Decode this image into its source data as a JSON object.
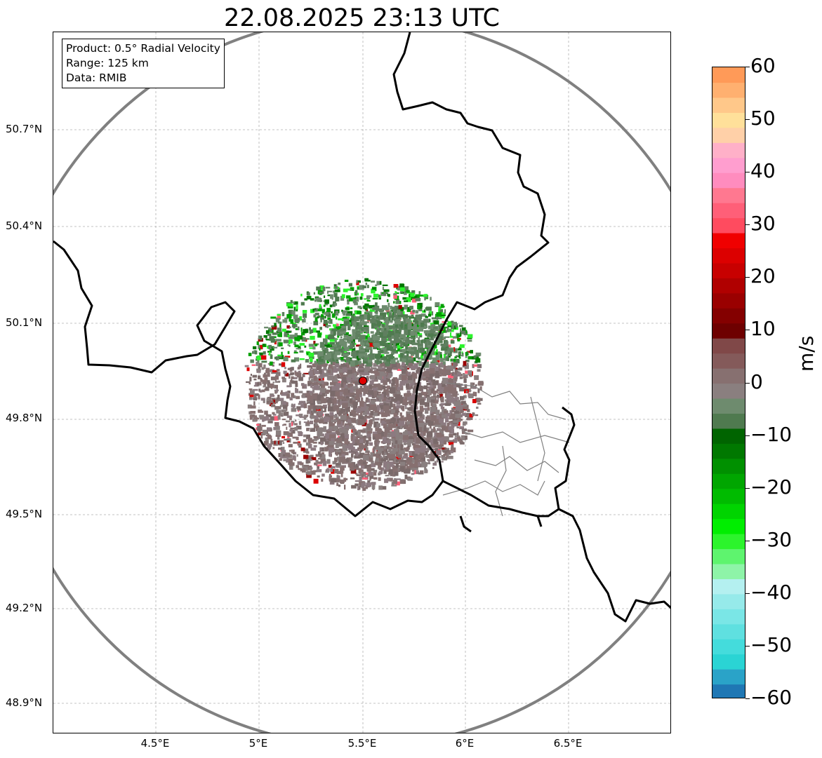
{
  "title": "22.08.2025 23:13 UTC",
  "info": {
    "product": "Product: 0.5° Radial Velocity",
    "range": "Range: 125 km",
    "data": "Data: RMIB"
  },
  "latitude_labels": [
    "50.7°N",
    "50.4°N",
    "50.1°N",
    "49.8°N",
    "49.5°N",
    "49.2°N",
    "48.9°N"
  ],
  "longitude_labels": [
    "4.5°E",
    "5°E",
    "5.5°E",
    "6°E",
    "6.5°E"
  ],
  "colorbar": {
    "unit": "m/s",
    "ticks": [
      "60",
      "50",
      "40",
      "30",
      "20",
      "10",
      "0",
      "−10",
      "−20",
      "−30",
      "−40",
      "−50",
      "−60"
    ],
    "range": [
      -60,
      60
    ],
    "colors": [
      "#1f77b4",
      "#2aa3c8",
      "#2ad4d4",
      "#44dcdc",
      "#5fe0e0",
      "#7ae6e6",
      "#96eaea",
      "#b4f0f0",
      "#8ef4a8",
      "#5ef46e",
      "#2cf42c",
      "#00ee00",
      "#00d400",
      "#00bb00",
      "#00a600",
      "#009000",
      "#007800",
      "#006400",
      "#4f7a4f",
      "#6e8b6e",
      "#8a7f7f",
      "#877070",
      "#845a5a",
      "#804848",
      "#6e0000",
      "#840000",
      "#9a0000",
      "#b00000",
      "#c80000",
      "#dc0000",
      "#f00000",
      "#ff4b5f",
      "#ff5f78",
      "#ff7890",
      "#ff8cbe",
      "#ff9ecf",
      "#ffb0c8",
      "#ffd0a8",
      "#ffe09a",
      "#ffc88a",
      "#ffb070",
      "#ff9a58"
    ]
  },
  "radar_site": {
    "name": "radar-site-marker",
    "color": "#e00000"
  },
  "colors": {
    "range_ring": "#808080",
    "border": "#000000",
    "grid": "#b0b0b0"
  }
}
